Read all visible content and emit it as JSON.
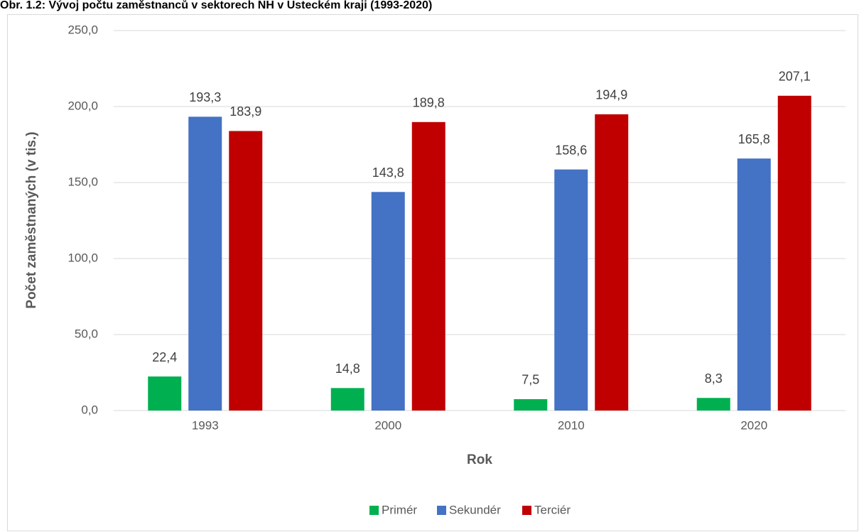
{
  "chart_data": {
    "type": "bar",
    "title": "Obr. 1.2: Vývoj počtu zaměstnanců v sektorech NH v Ústeckém kraji (1993-2020)",
    "xlabel": "Rok",
    "ylabel": "Počet zaměstnaných (v tis.)",
    "categories": [
      "1993",
      "2000",
      "2010",
      "2020"
    ],
    "series": [
      {
        "name": "Primér",
        "color": "#00b050",
        "values": [
          22.4,
          14.8,
          7.5,
          8.3
        ],
        "value_labels": [
          "22,4",
          "14,8",
          "7,5",
          "8,3"
        ]
      },
      {
        "name": "Sekundér",
        "color": "#4472c4",
        "values": [
          193.3,
          143.8,
          158.6,
          165.8
        ],
        "value_labels": [
          "193,3",
          "143,8",
          "158,6",
          "165,8"
        ]
      },
      {
        "name": "Terciér",
        "color": "#c00000",
        "values": [
          183.9,
          189.8,
          194.9,
          207.1
        ],
        "value_labels": [
          "183,9",
          "189,8",
          "194,9",
          "207,1"
        ]
      }
    ],
    "ylim": [
      0,
      250
    ],
    "yticks": [
      {
        "value": 0,
        "label": "0,0"
      },
      {
        "value": 50,
        "label": "50,0"
      },
      {
        "value": 100,
        "label": "100,0"
      },
      {
        "value": 150,
        "label": "150,0"
      },
      {
        "value": 200,
        "label": "200,0"
      },
      {
        "value": 250,
        "label": "250,0"
      }
    ],
    "grid": true,
    "legend": "bottom"
  }
}
